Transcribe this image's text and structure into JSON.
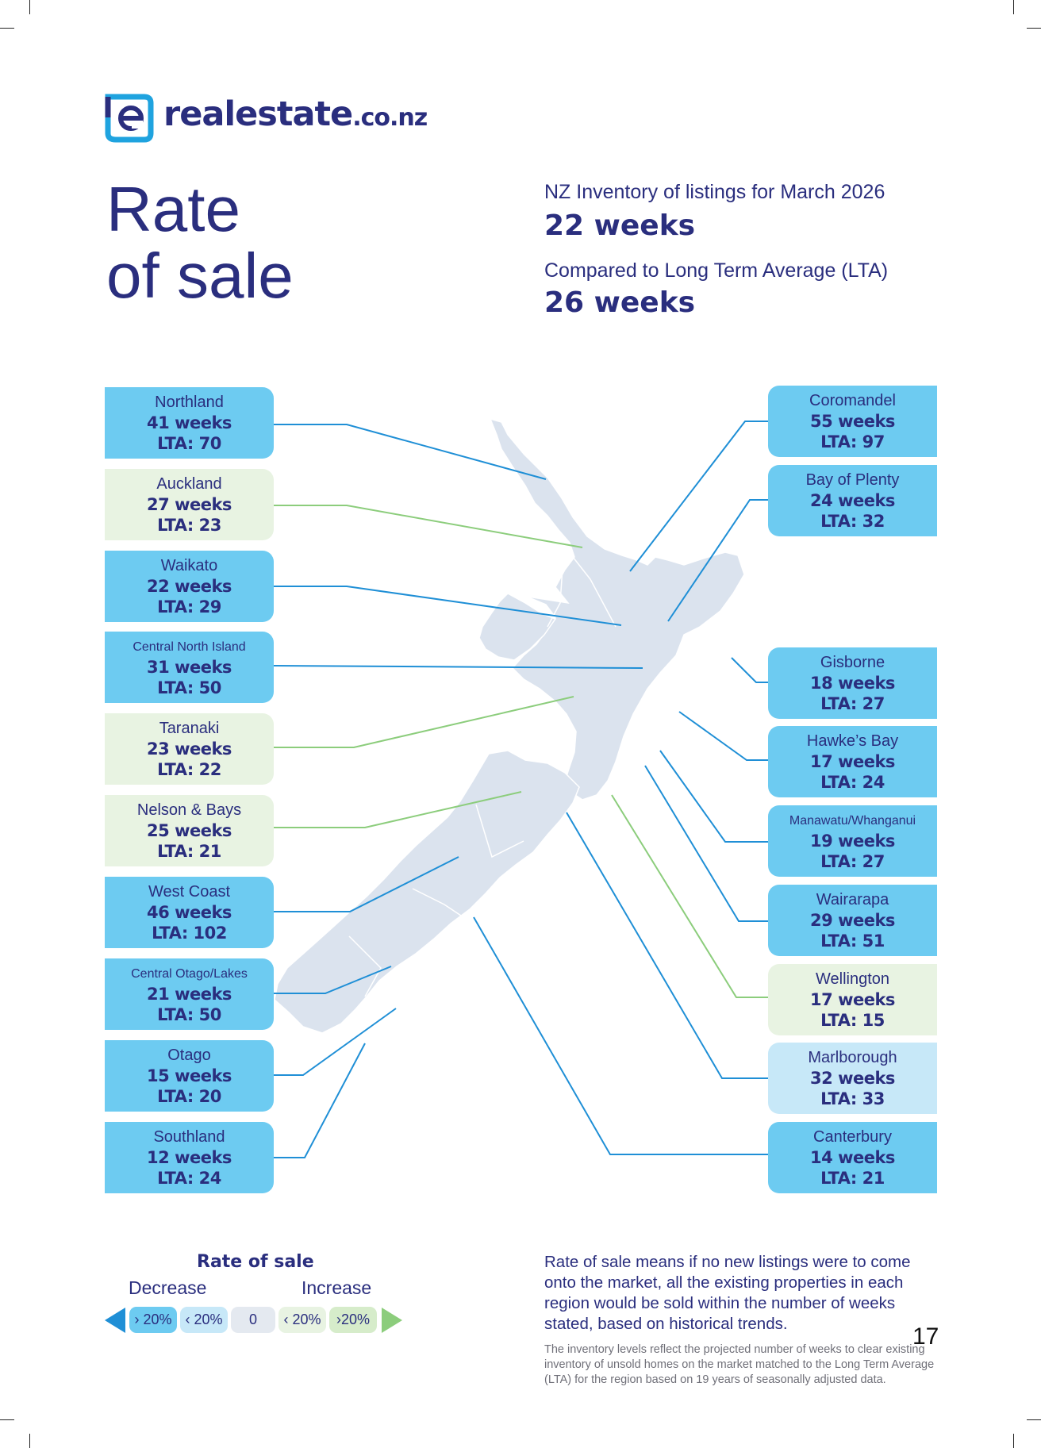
{
  "brand": {
    "name": "realestate",
    "tld": ".co.nz"
  },
  "title": {
    "line1": "Rate",
    "line2": "of sale"
  },
  "stats": {
    "inventory_label": "NZ Inventory of listings for March 2026",
    "inventory_value": "22 weeks",
    "lta_label": "Compared to Long Term Average (LTA)",
    "lta_value": "26 weeks"
  },
  "colors": {
    "decrease_strong": "#6dcbf1",
    "decrease_light": "#c7e8f8",
    "neutral": "#e4e9f0",
    "increase_light": "#e8f3e2",
    "increase_strong": "#d6ecca",
    "line_blue": "#1f8fd6",
    "line_green": "#8ccd7c",
    "map": "#dbe3ee"
  },
  "regions": [
    {
      "name": "Northland",
      "weeks": "41 weeks",
      "lta": "LTA: 70",
      "status": "decrease_strong"
    },
    {
      "name": "Auckland",
      "weeks": "27 weeks",
      "lta": "LTA: 23",
      "status": "increase_light"
    },
    {
      "name": "Waikato",
      "weeks": "22 weeks",
      "lta": "LTA: 29",
      "status": "decrease_strong"
    },
    {
      "name": "Central North Island",
      "weeks": "31 weeks",
      "lta": "LTA: 50",
      "status": "decrease_strong"
    },
    {
      "name": "Taranaki",
      "weeks": "23 weeks",
      "lta": "LTA: 22",
      "status": "increase_light"
    },
    {
      "name": "Nelson & Bays",
      "weeks": "25 weeks",
      "lta": "LTA: 21",
      "status": "increase_light"
    },
    {
      "name": "West Coast",
      "weeks": "46 weeks",
      "lta": "LTA: 102",
      "status": "decrease_strong"
    },
    {
      "name": "Central Otago/Lakes",
      "weeks": "21 weeks",
      "lta": "LTA: 50",
      "status": "decrease_strong"
    },
    {
      "name": "Otago",
      "weeks": "15 weeks",
      "lta": "LTA: 20",
      "status": "decrease_strong"
    },
    {
      "name": "Southland",
      "weeks": "12 weeks",
      "lta": "LTA: 24",
      "status": "decrease_strong"
    },
    {
      "name": "Coromandel",
      "weeks": "55 weeks",
      "lta": "LTA: 97",
      "status": "decrease_strong"
    },
    {
      "name": "Bay of Plenty",
      "weeks": "24 weeks",
      "lta": "LTA: 32",
      "status": "decrease_strong"
    },
    {
      "name": "Gisborne",
      "weeks": "18 weeks",
      "lta": "LTA: 27",
      "status": "decrease_strong"
    },
    {
      "name": "Hawke’s Bay",
      "weeks": "17 weeks",
      "lta": "LTA: 24",
      "status": "decrease_strong"
    },
    {
      "name": "Manawatu/Whanganui",
      "weeks": "19 weeks",
      "lta": "LTA: 27",
      "status": "decrease_strong"
    },
    {
      "name": "Wairarapa",
      "weeks": "29 weeks",
      "lta": "LTA: 51",
      "status": "decrease_strong"
    },
    {
      "name": "Wellington",
      "weeks": "17 weeks",
      "lta": "LTA: 15",
      "status": "increase_light"
    },
    {
      "name": "Marlborough",
      "weeks": "32 weeks",
      "lta": "LTA: 33",
      "status": "decrease_light"
    },
    {
      "name": "Canterbury",
      "weeks": "14 weeks",
      "lta": "LTA: 21",
      "status": "decrease_strong"
    }
  ],
  "legend": {
    "title": "Rate of sale",
    "decrease": "Decrease",
    "increase": "Increase",
    "chips": [
      "› 20%",
      "‹ 20%",
      "0",
      "‹ 20%",
      "›20%"
    ]
  },
  "explanation": "Rate of sale means if no new listings were to come onto the market, all the existing properties in each region would be sold within the number of weeks stated, based on historical trends.",
  "note": "The inventory levels reflect the projected number of weeks to clear existing inventory of unsold homes on the market matched to the Long Term Average (LTA) for the region based on 19 years of seasonally adjusted data.",
  "page_number": "17"
}
